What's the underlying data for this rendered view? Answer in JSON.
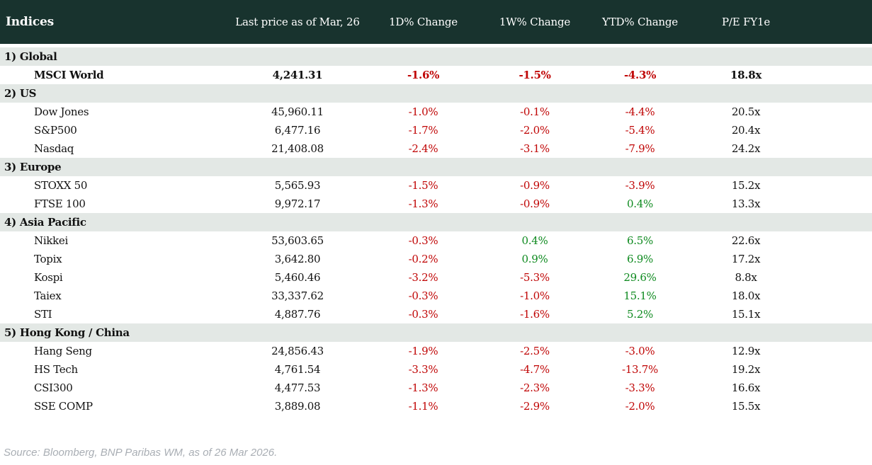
{
  "chart_data": {
    "type": "table",
    "title": "Indices",
    "columns": [
      "Last price as of Mar, 26",
      "1D% Change",
      "1W% Change",
      "YTD% Change",
      "P/E FY1e"
    ],
    "sections": [
      {
        "label": "1) Global",
        "rows": [
          {
            "name": "MSCI World",
            "bold": true,
            "last_price": "4,241.31",
            "change_1d": "-1.6%",
            "change_1w": "-1.5%",
            "change_ytd": "-4.3%",
            "pe": "18.8x"
          }
        ]
      },
      {
        "label": "2) US",
        "rows": [
          {
            "name": "Dow Jones",
            "last_price": "45,960.11",
            "change_1d": "-1.0%",
            "change_1w": "-0.1%",
            "change_ytd": "-4.4%",
            "pe": "20.5x"
          },
          {
            "name": "S&P500",
            "last_price": "6,477.16",
            "change_1d": "-1.7%",
            "change_1w": "-2.0%",
            "change_ytd": "-5.4%",
            "pe": "20.4x"
          },
          {
            "name": "Nasdaq",
            "last_price": "21,408.08",
            "change_1d": "-2.4%",
            "change_1w": "-3.1%",
            "change_ytd": "-7.9%",
            "pe": "24.2x"
          }
        ]
      },
      {
        "label": "3) Europe",
        "rows": [
          {
            "name": "STOXX 50",
            "last_price": "5,565.93",
            "change_1d": "-1.5%",
            "change_1w": "-0.9%",
            "change_ytd": "-3.9%",
            "pe": "15.2x"
          },
          {
            "name": "FTSE 100",
            "last_price": "9,972.17",
            "change_1d": "-1.3%",
            "change_1w": "-0.9%",
            "change_ytd": "0.4%",
            "pe": "13.3x"
          }
        ]
      },
      {
        "label": "4) Asia Pacific",
        "rows": [
          {
            "name": "Nikkei",
            "last_price": "53,603.65",
            "change_1d": "-0.3%",
            "change_1w": "0.4%",
            "change_ytd": "6.5%",
            "pe": "22.6x"
          },
          {
            "name": "Topix",
            "last_price": "3,642.80",
            "change_1d": "-0.2%",
            "change_1w": "0.9%",
            "change_ytd": "6.9%",
            "pe": "17.2x"
          },
          {
            "name": "Kospi",
            "last_price": "5,460.46",
            "change_1d": "-3.2%",
            "change_1w": "-5.3%",
            "change_ytd": "29.6%",
            "pe": "8.8x"
          },
          {
            "name": "Taiex",
            "last_price": "33,337.62",
            "change_1d": "-0.3%",
            "change_1w": "-1.0%",
            "change_ytd": "15.1%",
            "pe": "18.0x"
          },
          {
            "name": "STI",
            "last_price": "4,887.76",
            "change_1d": "-0.3%",
            "change_1w": "-1.6%",
            "change_ytd": "5.2%",
            "pe": "15.1x"
          }
        ]
      },
      {
        "label": "5) Hong Kong / China",
        "rows": [
          {
            "name": "Hang Seng",
            "last_price": "24,856.43",
            "change_1d": "-1.9%",
            "change_1w": "-2.5%",
            "change_ytd": "-3.0%",
            "pe": "12.9x"
          },
          {
            "name": "HS Tech",
            "last_price": "4,761.54",
            "change_1d": "-3.3%",
            "change_1w": "-4.7%",
            "change_ytd": "-13.7%",
            "pe": "19.2x"
          },
          {
            "name": "CSI300",
            "last_price": "4,477.53",
            "change_1d": "-1.3%",
            "change_1w": "-2.3%",
            "change_ytd": "-3.3%",
            "pe": "16.6x"
          },
          {
            "name": "SSE COMP",
            "last_price": "3,889.08",
            "change_1d": "-1.1%",
            "change_1w": "-2.9%",
            "change_ytd": "-2.0%",
            "pe": "15.5x"
          }
        ]
      }
    ],
    "legend_note": "negative changes shown in red, positive changes shown in green"
  },
  "footer": {
    "source": "Source: Bloomberg, BNP Paribas WM, as of 26 Mar 2026."
  },
  "colors": {
    "header_bg": "#18332e",
    "section_bg": "#e3e8e5",
    "negative": "#c00505",
    "positive": "#0e8a1f",
    "header_text": "#ffffff",
    "source_text": "#a9aeb4"
  }
}
